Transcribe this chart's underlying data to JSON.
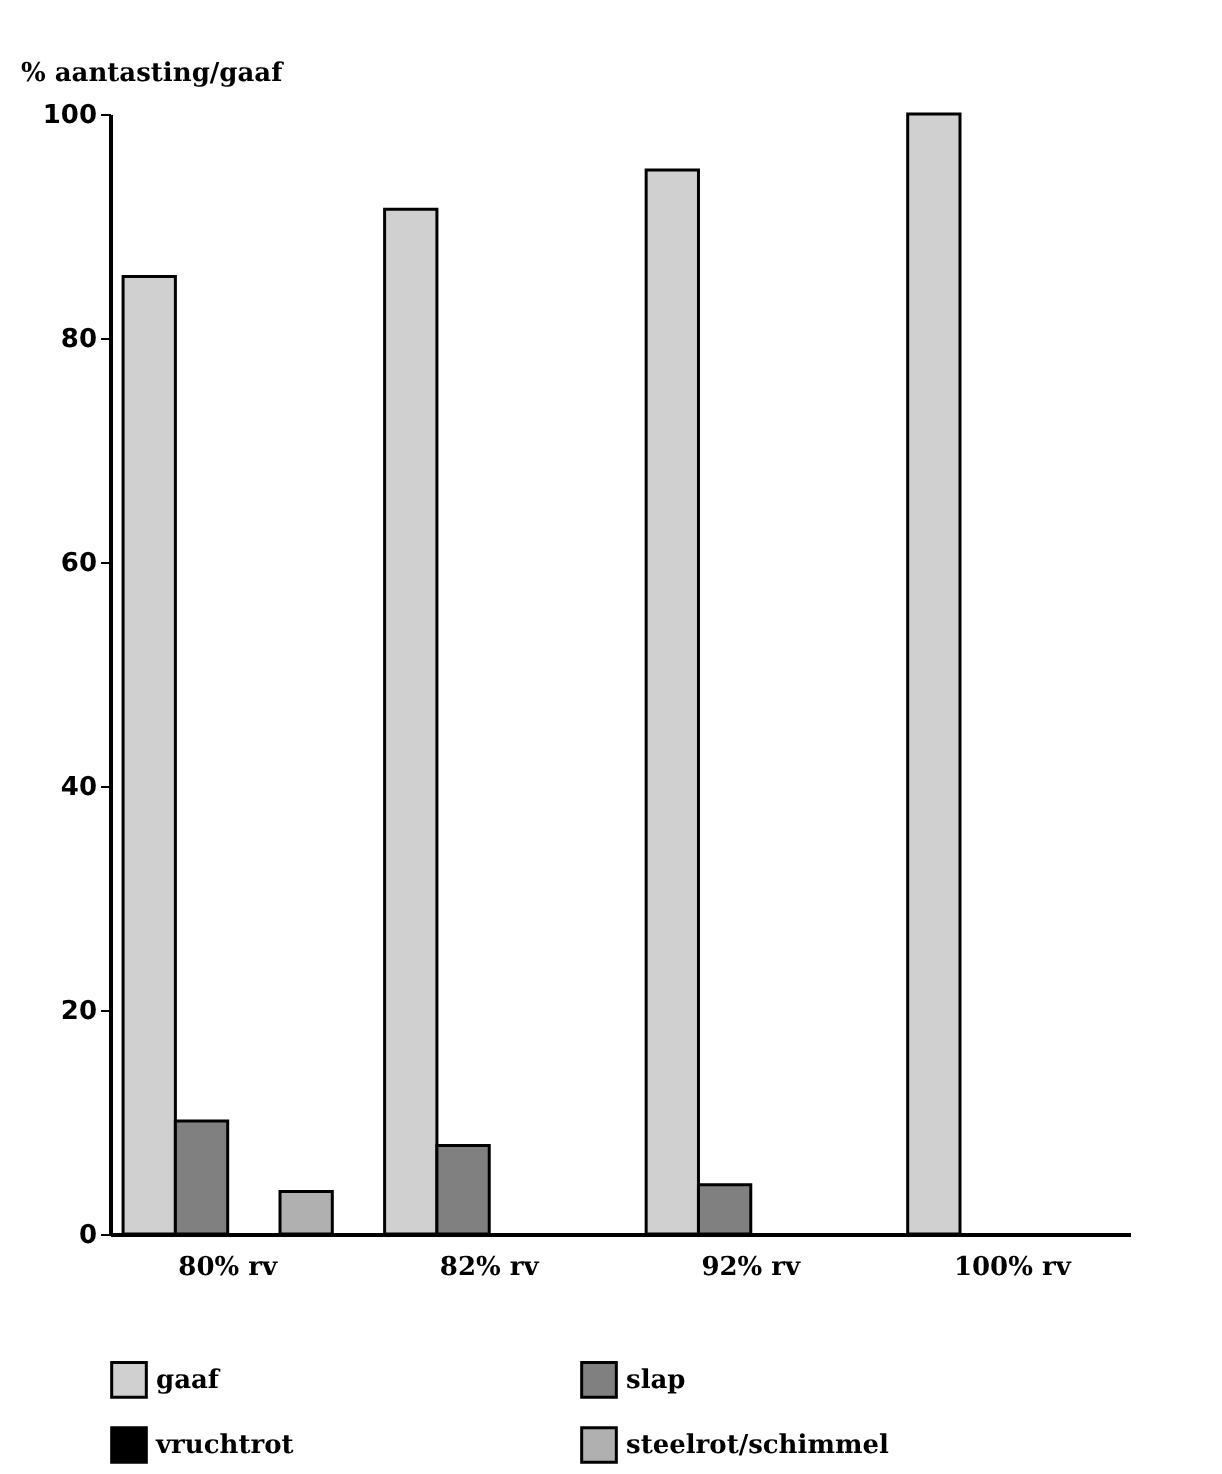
{
  "chart_data": {
    "type": "bar",
    "ylabel": "% aantasting/gaaf",
    "categories": [
      "80% rv",
      "82% rv",
      "92% rv",
      "100% rv"
    ],
    "series": [
      {
        "name": "gaaf",
        "color": "#d0d0d0",
        "values": [
          85.5,
          91.5,
          95,
          100
        ]
      },
      {
        "name": "slap",
        "color": "#808080",
        "values": [
          10.1,
          7.9,
          4.4,
          null
        ]
      },
      {
        "name": "vruchtrot",
        "color": "#000000",
        "values": [
          null,
          null,
          null,
          null
        ]
      },
      {
        "name": "steelrot/schimmel",
        "color": "#b0b0b0",
        "values": [
          3.8,
          null,
          null,
          null
        ]
      }
    ],
    "ylim": [
      0,
      100
    ],
    "yticks": [
      0,
      20,
      40,
      60,
      80,
      100
    ],
    "grid": false,
    "legend": "bottom"
  }
}
